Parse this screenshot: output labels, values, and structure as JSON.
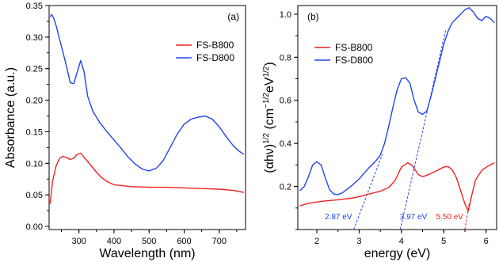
{
  "chart_data": [
    {
      "type": "line",
      "panel_label": "(a)",
      "xlabel": "Wavelength (nm)",
      "ylabel": "Absorbance (a.u.)",
      "xlim": [
        215,
        775
      ],
      "ylim": [
        -0.005,
        0.35
      ],
      "xticks": [
        300,
        400,
        500,
        600,
        700
      ],
      "yticks": [
        0.0,
        0.05,
        0.1,
        0.15,
        0.2,
        0.25,
        0.3,
        0.35
      ],
      "ytick_labels": [
        "0.00",
        "0.05",
        "0.10",
        "0.15",
        "0.20",
        "0.25",
        "0.30",
        "0.35"
      ],
      "legend_position": "top-right",
      "series": [
        {
          "name": "FS-B800",
          "color": "#ee2222",
          "x": [
            218,
            225,
            235,
            245,
            255,
            265,
            275,
            285,
            295,
            305,
            315,
            325,
            335,
            350,
            365,
            380,
            400,
            450,
            500,
            550,
            600,
            650,
            700,
            740,
            770
          ],
          "y": [
            0.036,
            0.072,
            0.096,
            0.108,
            0.111,
            0.109,
            0.106,
            0.108,
            0.114,
            0.116,
            0.109,
            0.103,
            0.096,
            0.086,
            0.077,
            0.071,
            0.066,
            0.063,
            0.062,
            0.062,
            0.061,
            0.06,
            0.059,
            0.057,
            0.054
          ]
        },
        {
          "name": "FS-D800",
          "color": "#2244ee",
          "x": [
            218,
            222,
            228,
            235,
            245,
            255,
            265,
            275,
            285,
            295,
            305,
            315,
            325,
            340,
            360,
            380,
            400,
            420,
            440,
            460,
            480,
            500,
            520,
            540,
            560,
            580,
            600,
            620,
            640,
            660,
            680,
            700,
            720,
            740,
            755,
            770
          ],
          "y": [
            0.332,
            0.336,
            0.33,
            0.318,
            0.296,
            0.275,
            0.253,
            0.228,
            0.226,
            0.244,
            0.263,
            0.244,
            0.206,
            0.182,
            0.164,
            0.15,
            0.137,
            0.124,
            0.11,
            0.099,
            0.091,
            0.088,
            0.092,
            0.104,
            0.125,
            0.146,
            0.162,
            0.17,
            0.173,
            0.175,
            0.17,
            0.158,
            0.142,
            0.128,
            0.12,
            0.114
          ]
        }
      ]
    },
    {
      "type": "line",
      "panel_label": "(b)",
      "xlabel": "energy (eV)",
      "ylabel": "(αhν)1/2 (cm−1/2eV1/2)",
      "ylabel_parts": {
        "base": "(αhν)",
        "exp1": "1/2",
        "mid": " (cm",
        "exp2": "−1/2",
        "mid2": "eV",
        "exp3": "1/2",
        "end": ")"
      },
      "xlim": [
        1.55,
        6.25
      ],
      "ylim": [
        0.0,
        1.04
      ],
      "xticks": [
        2,
        3,
        4,
        5,
        6
      ],
      "yticks": [
        0.2,
        0.4,
        0.6,
        0.8,
        1.0
      ],
      "ytick_labels": [
        "0.2",
        "0.4",
        "0.6",
        "0.8",
        "1.0"
      ],
      "legend_position": "top-left",
      "series": [
        {
          "name": "FS-B800",
          "color": "#ee2222",
          "x": [
            1.6,
            1.8,
            2.0,
            2.2,
            2.5,
            2.8,
            3.0,
            3.2,
            3.5,
            3.7,
            3.85,
            4.0,
            4.15,
            4.25,
            4.4,
            4.5,
            4.6,
            4.8,
            5.0,
            5.1,
            5.2,
            5.3,
            5.4,
            5.5,
            5.58,
            5.65,
            5.75,
            5.9,
            6.05,
            6.2
          ],
          "y": [
            0.11,
            0.122,
            0.128,
            0.133,
            0.138,
            0.145,
            0.152,
            0.163,
            0.178,
            0.195,
            0.228,
            0.29,
            0.31,
            0.298,
            0.255,
            0.245,
            0.252,
            0.27,
            0.29,
            0.293,
            0.278,
            0.24,
            0.18,
            0.12,
            0.085,
            0.15,
            0.23,
            0.275,
            0.295,
            0.31
          ]
        },
        {
          "name": "FS-D800",
          "color": "#2244ee",
          "x": [
            1.6,
            1.7,
            1.8,
            1.9,
            2.0,
            2.1,
            2.2,
            2.3,
            2.4,
            2.5,
            2.6,
            2.8,
            3.0,
            3.2,
            3.4,
            3.5,
            3.6,
            3.7,
            3.8,
            3.9,
            4.0,
            4.1,
            4.2,
            4.3,
            4.4,
            4.5,
            4.6,
            4.7,
            4.8,
            4.9,
            5.0,
            5.1,
            5.2,
            5.3,
            5.4,
            5.5,
            5.6,
            5.7,
            5.8,
            5.9,
            6.0,
            6.1,
            6.2
          ],
          "y": [
            0.18,
            0.2,
            0.245,
            0.3,
            0.315,
            0.3,
            0.24,
            0.185,
            0.165,
            0.162,
            0.17,
            0.2,
            0.235,
            0.28,
            0.32,
            0.345,
            0.4,
            0.48,
            0.57,
            0.65,
            0.7,
            0.705,
            0.68,
            0.6,
            0.545,
            0.535,
            0.55,
            0.62,
            0.7,
            0.78,
            0.86,
            0.92,
            0.96,
            0.98,
            1.0,
            1.02,
            1.03,
            1.01,
            0.98,
            0.97,
            0.99,
            0.98,
            0.96
          ]
        }
      ],
      "tangent_lines": [
        {
          "label": "2.87 eV",
          "color": "#2244ee",
          "x0": 2.87,
          "x1": 3.55,
          "y1": 0.35
        },
        {
          "label": "3.97 eV",
          "color": "#2244ee",
          "x0": 3.97,
          "x1": 5.05,
          "y1": 0.93
        },
        {
          "label": "5.50 eV",
          "color": "#ee2222",
          "x0": 5.5,
          "x1": 5.6,
          "y1": 0.12
        }
      ]
    }
  ]
}
